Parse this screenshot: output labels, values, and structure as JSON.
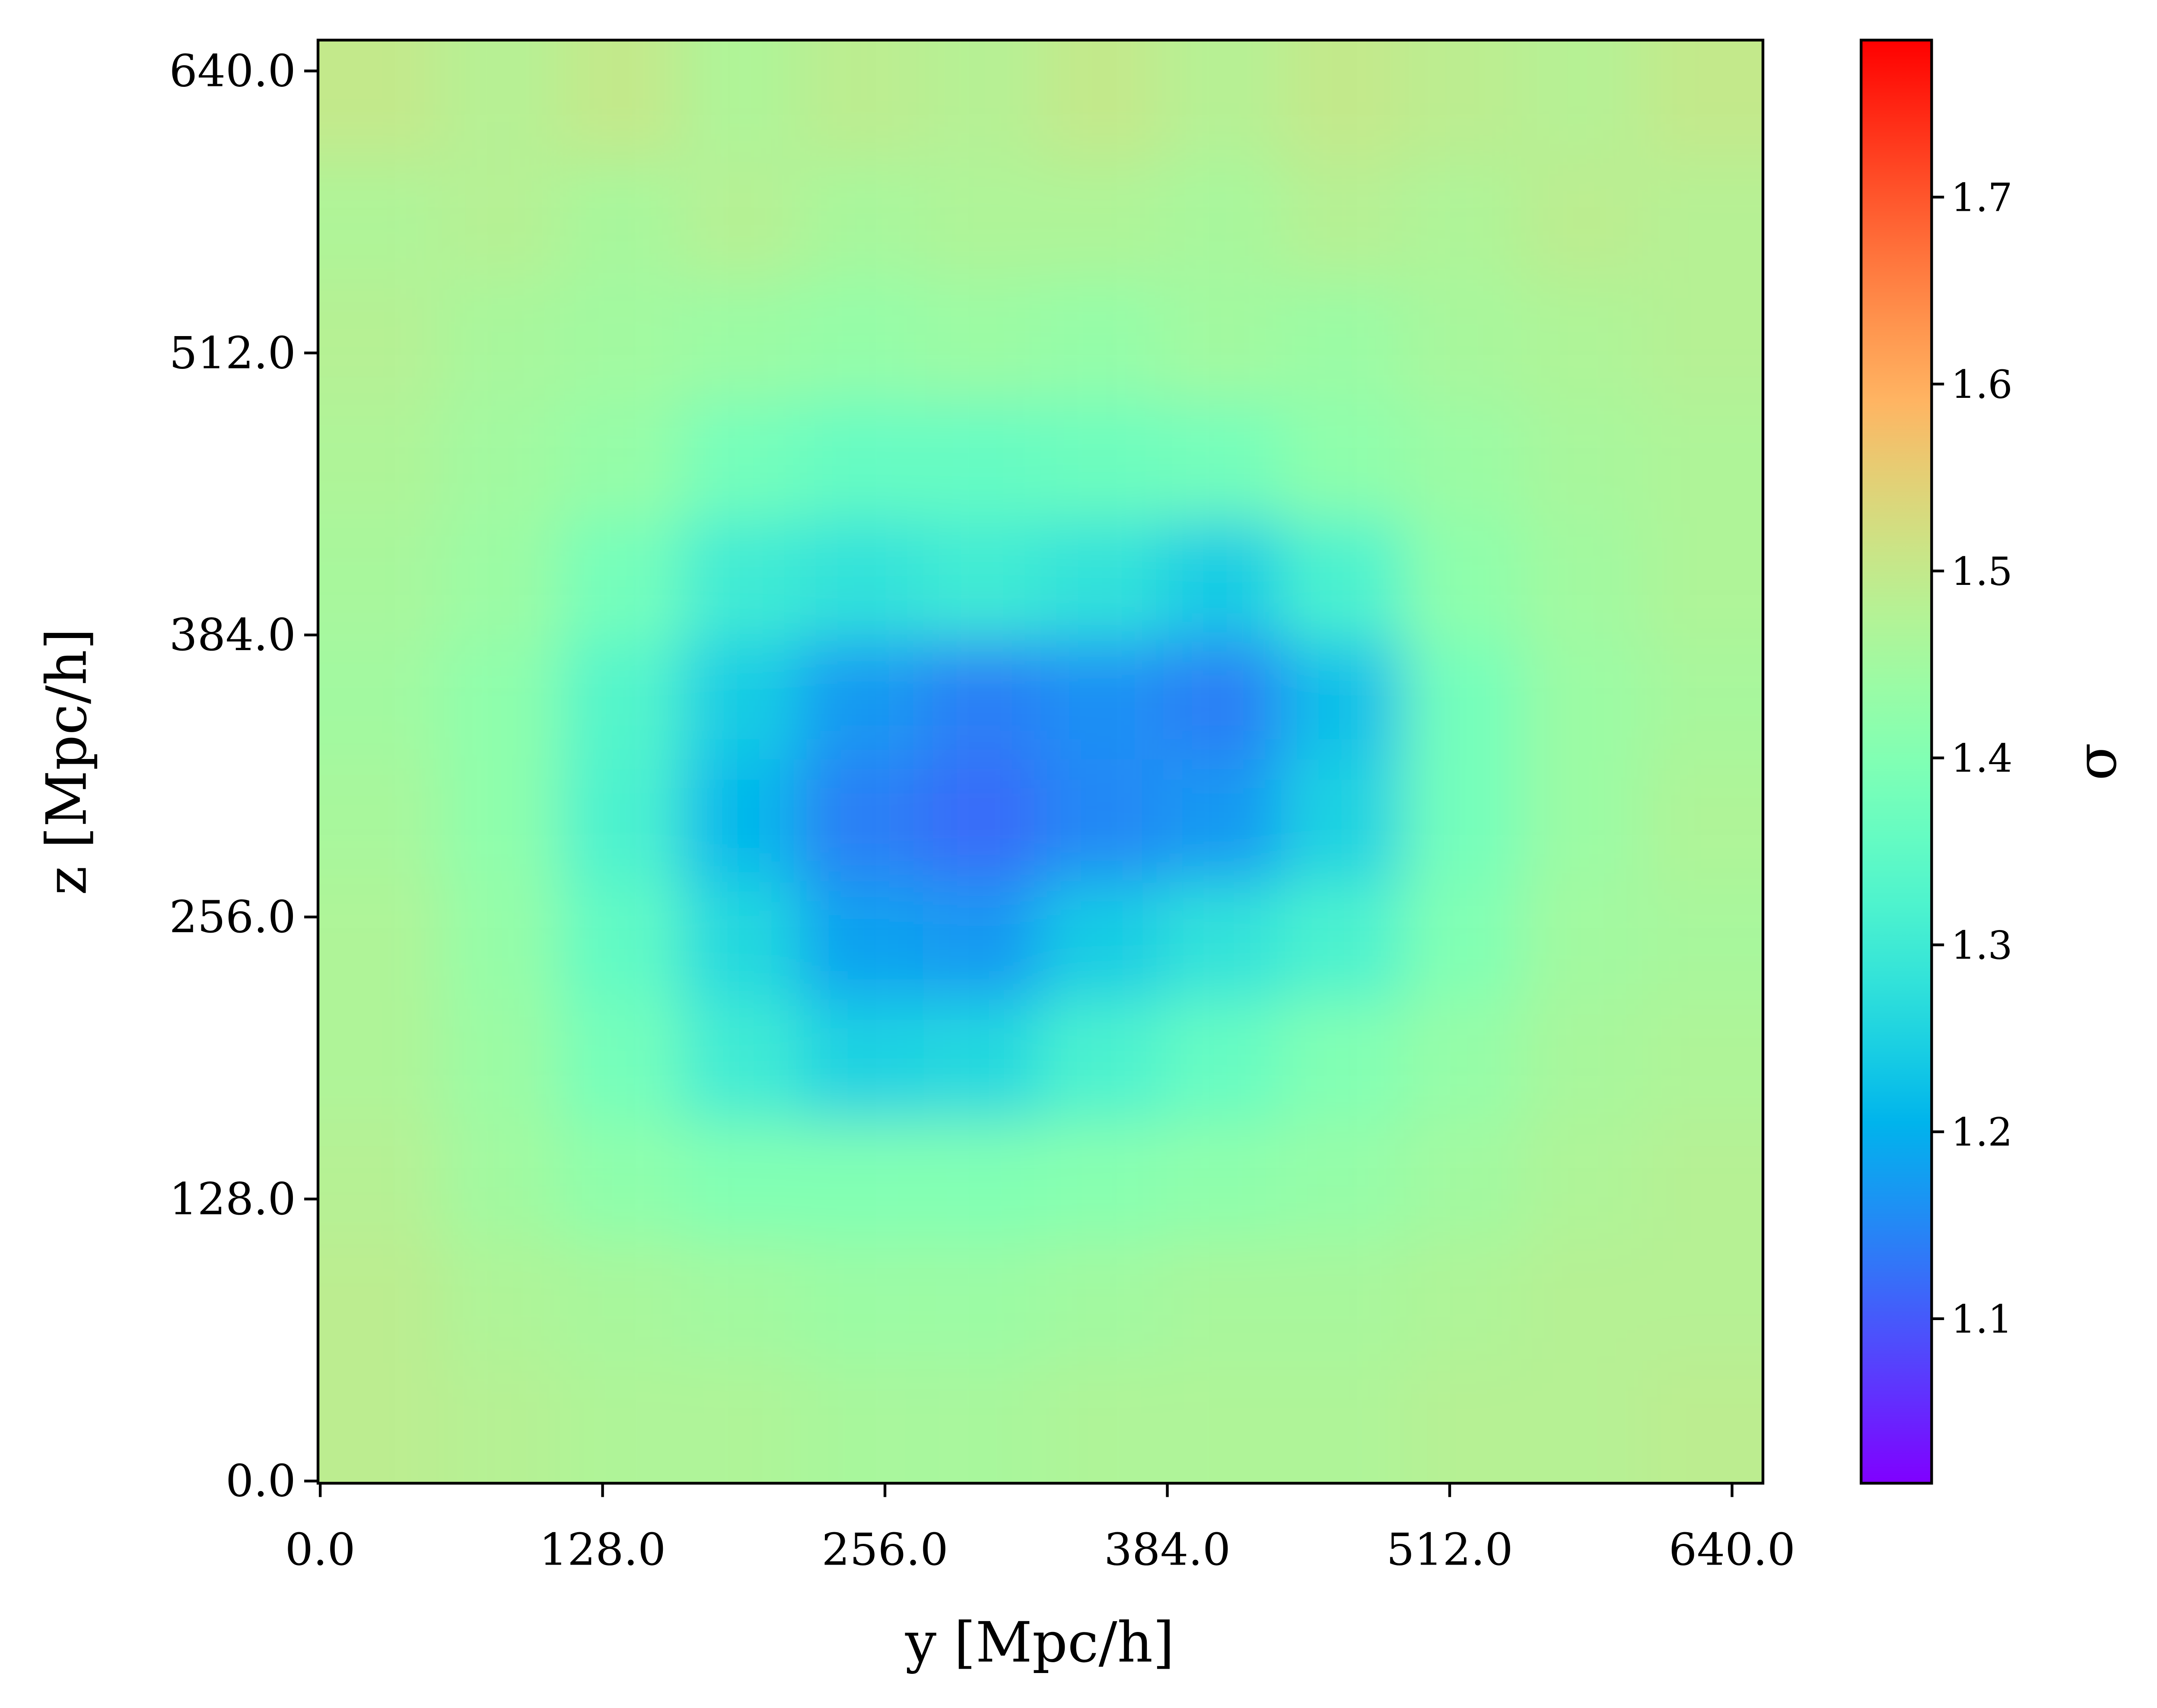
{
  "chart_data": {
    "type": "heatmap",
    "colormap": "rainbow",
    "x_label": "y [Mpc/h]",
    "y_label": "z [Mpc/h]",
    "colorbar_label": "σ",
    "xlim": [
      -1,
      654
    ],
    "ylim": [
      -1,
      654
    ],
    "xticks": [
      {
        "value": 0,
        "label": "0.0"
      },
      {
        "value": 128,
        "label": "128.0"
      },
      {
        "value": 256,
        "label": "256.0"
      },
      {
        "value": 384,
        "label": "384.0"
      },
      {
        "value": 512,
        "label": "512.0"
      },
      {
        "value": 640,
        "label": "640.0"
      }
    ],
    "yticks": [
      {
        "value": 0,
        "label": "0.0"
      },
      {
        "value": 128,
        "label": "128.0"
      },
      {
        "value": 256,
        "label": "256.0"
      },
      {
        "value": 384,
        "label": "384.0"
      },
      {
        "value": 512,
        "label": "512.0"
      },
      {
        "value": 640,
        "label": "640.0"
      }
    ],
    "clim": [
      1.012,
      1.784
    ],
    "cticks": [
      1.1,
      1.2,
      1.3,
      1.4,
      1.5,
      1.6,
      1.7
    ],
    "x": [
      27,
      82,
      136,
      191,
      245,
      300,
      354,
      409,
      463,
      518,
      572,
      627
    ],
    "y": [
      627,
      572,
      518,
      463,
      409,
      354,
      300,
      245,
      191,
      136,
      82,
      27
    ],
    "values": [
      [
        1.5,
        1.48,
        1.5,
        1.47,
        1.49,
        1.48,
        1.5,
        1.48,
        1.5,
        1.49,
        1.48,
        1.5
      ],
      [
        1.47,
        1.48,
        1.46,
        1.48,
        1.46,
        1.47,
        1.47,
        1.46,
        1.48,
        1.47,
        1.49,
        1.48
      ],
      [
        1.48,
        1.46,
        1.45,
        1.44,
        1.43,
        1.44,
        1.43,
        1.45,
        1.44,
        1.46,
        1.47,
        1.48
      ],
      [
        1.47,
        1.45,
        1.43,
        1.38,
        1.36,
        1.36,
        1.37,
        1.38,
        1.42,
        1.44,
        1.46,
        1.47
      ],
      [
        1.46,
        1.44,
        1.38,
        1.3,
        1.28,
        1.3,
        1.28,
        1.24,
        1.32,
        1.42,
        1.45,
        1.47
      ],
      [
        1.45,
        1.42,
        1.33,
        1.24,
        1.17,
        1.14,
        1.16,
        1.14,
        1.22,
        1.38,
        1.44,
        1.46
      ],
      [
        1.46,
        1.42,
        1.32,
        1.21,
        1.14,
        1.12,
        1.15,
        1.17,
        1.25,
        1.38,
        1.44,
        1.47
      ],
      [
        1.47,
        1.43,
        1.35,
        1.26,
        1.18,
        1.17,
        1.24,
        1.28,
        1.32,
        1.4,
        1.45,
        1.46
      ],
      [
        1.47,
        1.44,
        1.38,
        1.3,
        1.25,
        1.26,
        1.32,
        1.36,
        1.4,
        1.43,
        1.46,
        1.47
      ],
      [
        1.48,
        1.45,
        1.42,
        1.4,
        1.4,
        1.4,
        1.41,
        1.42,
        1.43,
        1.45,
        1.47,
        1.48
      ],
      [
        1.49,
        1.47,
        1.46,
        1.45,
        1.44,
        1.44,
        1.45,
        1.46,
        1.46,
        1.47,
        1.48,
        1.48
      ],
      [
        1.49,
        1.48,
        1.47,
        1.47,
        1.46,
        1.46,
        1.47,
        1.47,
        1.47,
        1.48,
        1.48,
        1.49
      ]
    ]
  }
}
